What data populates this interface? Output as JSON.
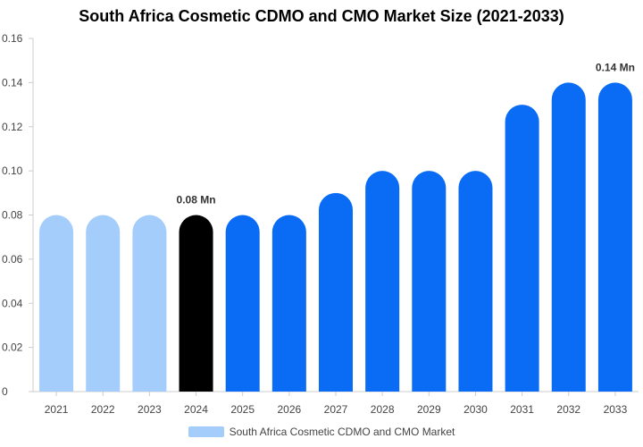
{
  "chart_data": {
    "type": "bar",
    "title": "South Africa Cosmetic CDMO and CMO Market Size (2021-2033)",
    "categories": [
      "2021",
      "2022",
      "2023",
      "2024",
      "2025",
      "2026",
      "2027",
      "2028",
      "2029",
      "2030",
      "2031",
      "2032",
      "2033"
    ],
    "series": [
      {
        "name": "South Africa Cosmetic CDMO and CMO Market",
        "values": [
          0.08,
          0.08,
          0.08,
          0.08,
          0.08,
          0.08,
          0.09,
          0.1,
          0.1,
          0.1,
          0.13,
          0.14,
          0.14
        ]
      }
    ],
    "bar_colors": [
      "#a5cdfb",
      "#a5cdfb",
      "#a5cdfb",
      "#000000",
      "#0a6cf5",
      "#0a6cf5",
      "#0a6cf5",
      "#0a6cf5",
      "#0a6cf5",
      "#0a6cf5",
      "#0a6cf5",
      "#0a6cf5",
      "#0a6cf5"
    ],
    "ylim": [
      0,
      0.16
    ],
    "yticks": [
      "0",
      "0.02",
      "0.04",
      "0.06",
      "0.08",
      "0.10",
      "0.12",
      "0.14",
      "0.16"
    ],
    "ytick_values": [
      0,
      0.02,
      0.04,
      0.06,
      0.08,
      0.1,
      0.12,
      0.14,
      0.16
    ],
    "annotations": [
      {
        "category": "2024",
        "text": "0.08 Mn"
      },
      {
        "category": "2033",
        "text": "0.14 Mn"
      }
    ],
    "legend": {
      "label": "South Africa Cosmetic CDMO and CMO Market",
      "color": "#a5cdfb",
      "placement": "bottom"
    },
    "xlabel": "",
    "ylabel": "",
    "grid": false
  }
}
